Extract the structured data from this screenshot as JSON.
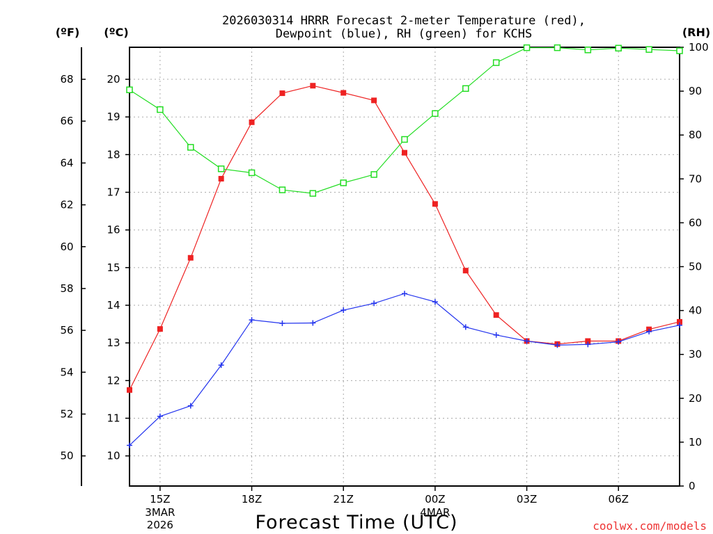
{
  "chart_data": {
    "type": "line",
    "title_line1": "2026030314 HRRR Forecast 2-meter Temperature (red),",
    "title_line2": "Dewpoint (blue), RH (green) for KCHS",
    "xlabel": "Forecast Time (UTC)",
    "credit": "coolwx.com/models",
    "units": {
      "fahrenheit": "(ºF)",
      "celsius": "(ºC)",
      "rh": "(RH)"
    },
    "x_hours": [
      14,
      15,
      16,
      17,
      18,
      19,
      20,
      21,
      22,
      23,
      24,
      25,
      26,
      27,
      28,
      29,
      30,
      31,
      32
    ],
    "xlim": [
      14,
      32
    ],
    "x_ticks": [
      {
        "hour": 15,
        "label": "15Z",
        "sub1": "3MAR",
        "sub2": "2026"
      },
      {
        "hour": 18,
        "label": "18Z",
        "sub1": "",
        "sub2": ""
      },
      {
        "hour": 21,
        "label": "21Z",
        "sub1": "",
        "sub2": ""
      },
      {
        "hour": 24,
        "label": "00Z",
        "sub1": "4MAR",
        "sub2": ""
      },
      {
        "hour": 27,
        "label": "03Z",
        "sub1": "",
        "sub2": ""
      },
      {
        "hour": 30,
        "label": "06Z",
        "sub1": "",
        "sub2": ""
      }
    ],
    "celsius_axis": {
      "lim": [
        9.2,
        20.85
      ],
      "ticks": [
        10,
        11,
        12,
        13,
        14,
        15,
        16,
        17,
        18,
        19,
        20
      ]
    },
    "fahrenheit_ticks": [
      50,
      52,
      54,
      56,
      58,
      60,
      62,
      64,
      66,
      68
    ],
    "rh_axis": {
      "lim": [
        0,
        100
      ],
      "ticks": [
        0,
        10,
        20,
        30,
        40,
        50,
        60,
        70,
        80,
        90,
        100
      ]
    },
    "series": [
      {
        "name": "Temperature",
        "axis": "celsius",
        "color": "#ee2222",
        "marker": "filled-square",
        "values": [
          11.75,
          13.37,
          15.26,
          17.36,
          18.86,
          19.63,
          19.83,
          19.64,
          19.44,
          18.05,
          16.69,
          14.92,
          13.74,
          13.05,
          12.97,
          13.05,
          13.05,
          13.36,
          13.56
        ]
      },
      {
        "name": "Dewpoint",
        "axis": "celsius",
        "color": "#2233ee",
        "marker": "plus",
        "values": [
          10.28,
          11.05,
          11.33,
          12.41,
          13.61,
          13.52,
          13.53,
          13.87,
          14.05,
          14.31,
          14.09,
          13.42,
          13.21,
          13.05,
          12.94,
          12.96,
          13.03,
          13.3,
          13.47
        ]
      },
      {
        "name": "RH",
        "axis": "rh",
        "color": "#22dd22",
        "marker": "open-square",
        "values": [
          90.3,
          85.8,
          77.2,
          72.3,
          71.4,
          67.5,
          66.7,
          69.1,
          71.0,
          79.0,
          84.9,
          90.6,
          96.5,
          99.9,
          99.9,
          99.4,
          99.8,
          99.5,
          99.2
        ]
      }
    ]
  }
}
